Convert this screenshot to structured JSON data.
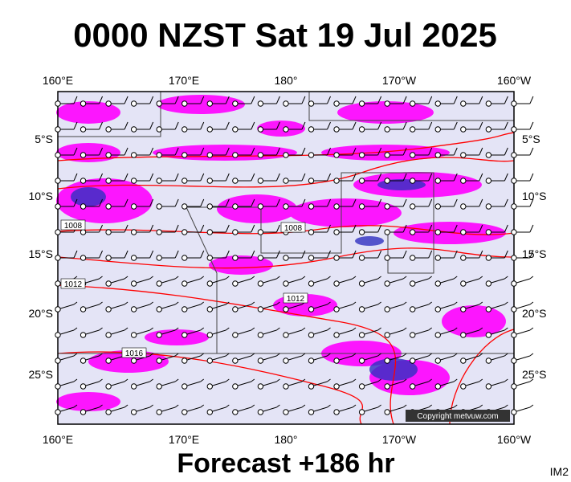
{
  "title": "0000 NZST Sat 19 Jul 2025",
  "top_axis_labels": [
    "160°E",
    "170°E",
    "180°",
    "170°W",
    "160°W"
  ],
  "bottom_axis_labels": [
    "160°E",
    "170°E",
    "180°",
    "170°W",
    "160°W"
  ],
  "left_axis_labels": [
    "5°S",
    "10°S",
    "15°S",
    "20°S",
    "25°S"
  ],
  "right_axis_labels": [
    "5°S",
    "10°S",
    "15°S",
    "20°S",
    "25°S"
  ],
  "isobar_labels": [
    "1008",
    "1008",
    "1012",
    "1012",
    "1016"
  ],
  "footer": "Forecast +186 hr",
  "copyright": "Copyright metvuw.com",
  "image_id": "IM2"
}
